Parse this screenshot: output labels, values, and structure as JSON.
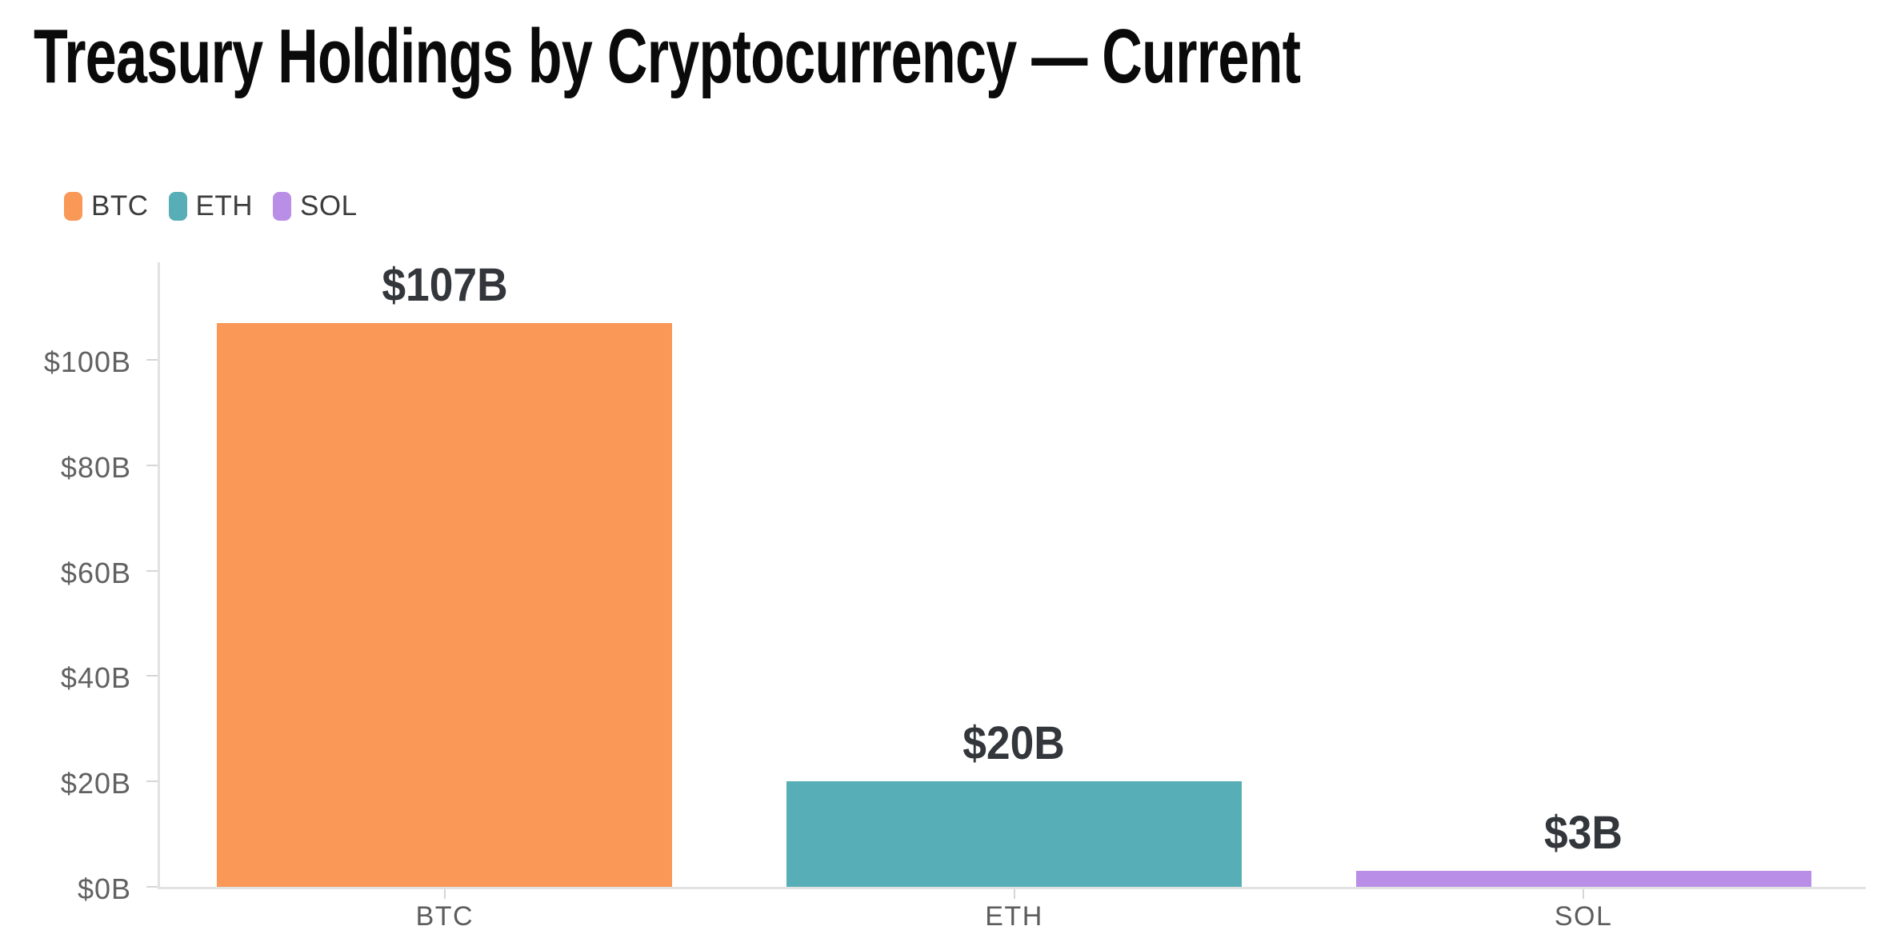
{
  "title": "Treasury Holdings by Cryptocurrency — Current",
  "legend": {
    "items": [
      {
        "label": "BTC",
        "color": "#f99857"
      },
      {
        "label": "ETH",
        "color": "#57aeb6"
      },
      {
        "label": "SOL",
        "color": "#b98ee6"
      }
    ]
  },
  "colors": {
    "btc": "#f99857",
    "eth": "#57aeb6",
    "sol": "#b98ee6",
    "axis_line": "#e2e2e2",
    "tick": "#d6d6d6",
    "axis_text": "#616161",
    "value_label_text": "#33373c",
    "title_text": "#0a0a0a"
  },
  "chart_data": {
    "type": "bar",
    "title": "Treasury Holdings by Cryptocurrency — Current",
    "categories": [
      "BTC",
      "ETH",
      "SOL"
    ],
    "values": [
      107,
      20,
      3
    ],
    "value_labels": [
      "$107B",
      "$20B",
      "$3B"
    ],
    "bar_colors": [
      "#f99857",
      "#57aeb6",
      "#b98ee6"
    ],
    "xlabel": "",
    "ylabel": "",
    "ylim": [
      0,
      119
    ],
    "ytick_values": [
      0,
      20,
      40,
      60,
      80,
      100
    ],
    "ytick_labels": [
      "$0B",
      "$20B",
      "$40B",
      "$60B",
      "$80B",
      "$100B"
    ],
    "grid": false,
    "legend_position": "top-left",
    "legend_entries": [
      "BTC",
      "ETH",
      "SOL"
    ],
    "bar_band_fill_ratio": 0.8
  }
}
